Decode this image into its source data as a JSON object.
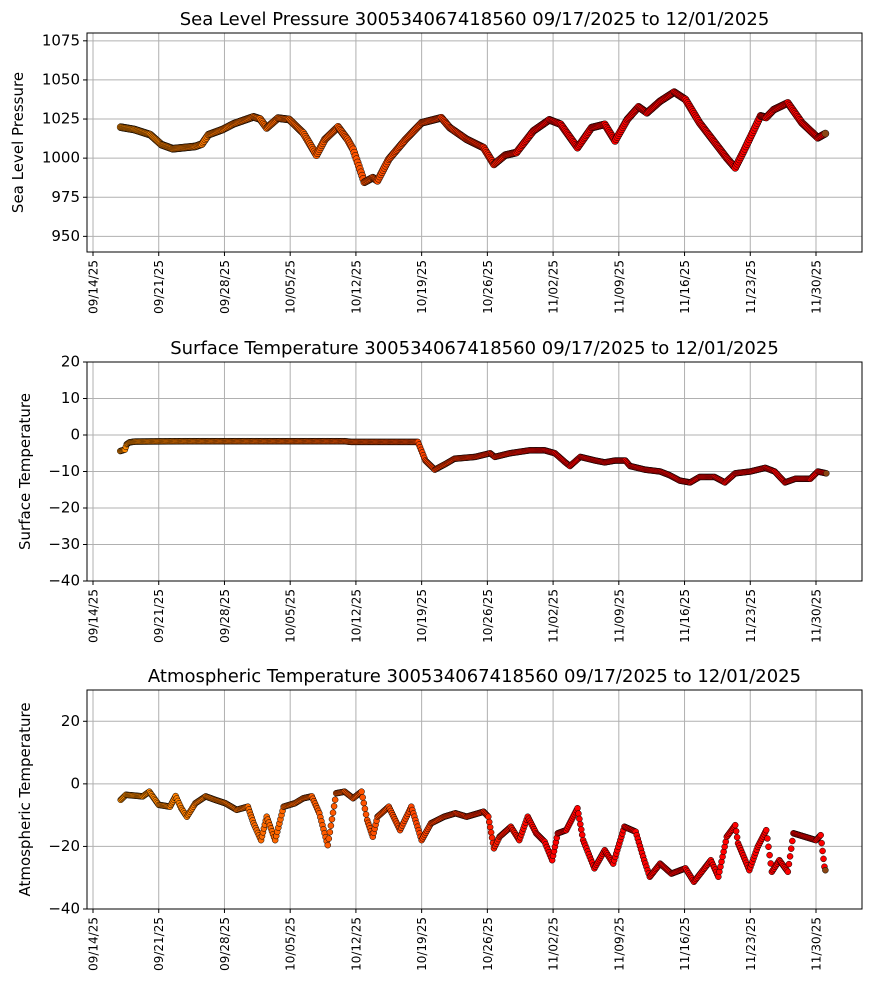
{
  "x_tick_labels": [
    "09/14/25",
    "09/21/25",
    "09/28/25",
    "10/05/25",
    "10/12/25",
    "10/19/25",
    "10/26/25",
    "11/02/25",
    "11/09/25",
    "11/16/25",
    "11/23/25",
    "11/30/25"
  ],
  "colors": {
    "start": "#ff8c00",
    "mid": "#ff4500",
    "end": "#ff0000",
    "last": "#8b4513",
    "edge": "#000000",
    "grid": "#b0b0b0"
  },
  "chart_data": [
    {
      "type": "scatter",
      "title": "Sea Level Pressure 300534067418560  09/17/2025 to 12/01/2025",
      "ylabel": "Sea Level Pressure",
      "xlabel": "",
      "x_units": "days since 09/14/25",
      "xlim": [
        -0.64,
        81.9
      ],
      "ylim": [
        940,
        1080
      ],
      "yticks": [
        950,
        975,
        1000,
        1025,
        1050,
        1075
      ],
      "grid": true,
      "points": [
        [
          2.95,
          1019.8
        ],
        [
          4.4,
          1018.3
        ],
        [
          6.1,
          1015
        ],
        [
          7.3,
          1008.6
        ],
        [
          8.5,
          1006
        ],
        [
          10.9,
          1007.5
        ],
        [
          11.6,
          1009
        ],
        [
          12.3,
          1015
        ],
        [
          13.8,
          1018.3
        ],
        [
          15,
          1022
        ],
        [
          17.1,
          1026.4
        ],
        [
          17.8,
          1025
        ],
        [
          18.5,
          1019.3
        ],
        [
          19.7,
          1025.6
        ],
        [
          20.9,
          1024.7
        ],
        [
          22.4,
          1016
        ],
        [
          23.8,
          1001.9
        ],
        [
          24.7,
          1012
        ],
        [
          26.1,
          1020
        ],
        [
          27.1,
          1012
        ],
        [
          27.7,
          1005.6
        ],
        [
          28.9,
          984.6
        ],
        [
          29.8,
          987.5
        ],
        [
          30.3,
          985.5
        ],
        [
          31.5,
          999.3
        ],
        [
          33.3,
          1012
        ],
        [
          35,
          1022.6
        ],
        [
          37.1,
          1025.8
        ],
        [
          38,
          1019.5
        ],
        [
          39.8,
          1012
        ],
        [
          41.6,
          1006.7
        ],
        [
          42.7,
          996
        ],
        [
          43.9,
          1001.9
        ],
        [
          45.1,
          1003.6
        ],
        [
          46.9,
          1017.4
        ],
        [
          48.6,
          1024.5
        ],
        [
          49.8,
          1021.7
        ],
        [
          51.6,
          1006.7
        ],
        [
          53.1,
          1019.5
        ],
        [
          54.5,
          1021.6
        ],
        [
          55.6,
          1011
        ],
        [
          56.9,
          1024.7
        ],
        [
          58.1,
          1032.8
        ],
        [
          59,
          1029
        ],
        [
          60.4,
          1036.4
        ],
        [
          61.9,
          1042.2
        ],
        [
          63.1,
          1037.5
        ],
        [
          64.6,
          1022.6
        ],
        [
          66.4,
          1008.6
        ],
        [
          67.5,
          1000
        ],
        [
          68.4,
          993.8
        ],
        [
          69.3,
          1004.5
        ],
        [
          71.1,
          1027
        ],
        [
          71.7,
          1026
        ],
        [
          72.5,
          1031
        ],
        [
          74,
          1035.3
        ],
        [
          75.5,
          1022.6
        ],
        [
          77.2,
          1013
        ],
        [
          78,
          1015.7
        ]
      ]
    },
    {
      "type": "scatter",
      "title": "Surface Temperature 300534067418560  09/17/2025 to 12/01/2025",
      "ylabel": "Surface Temperature",
      "xlabel": "",
      "x_units": "days since 09/14/25",
      "xlim": [
        -0.64,
        81.9
      ],
      "ylim": [
        -40,
        20
      ],
      "yticks": [
        -40,
        -30,
        -20,
        -10,
        0,
        10,
        20
      ],
      "grid": true,
      "points": [
        [
          2.9,
          -4.4
        ],
        [
          3.4,
          -4
        ],
        [
          3.6,
          -2.5
        ],
        [
          3.9,
          -2
        ],
        [
          4.5,
          -1.8
        ],
        [
          10,
          -1.7
        ],
        [
          26.8,
          -1.7
        ],
        [
          27.5,
          -1.9
        ],
        [
          34.6,
          -1.9
        ],
        [
          35.4,
          -7
        ],
        [
          36.4,
          -9.5
        ],
        [
          37.5,
          -8
        ],
        [
          38.5,
          -6.5
        ],
        [
          40.7,
          -6
        ],
        [
          42.3,
          -5
        ],
        [
          42.8,
          -6
        ],
        [
          44.4,
          -5
        ],
        [
          46.5,
          -4.2
        ],
        [
          48.1,
          -4.2
        ],
        [
          49.2,
          -5
        ],
        [
          50.3,
          -7.5
        ],
        [
          50.8,
          -8.5
        ],
        [
          51.9,
          -6
        ],
        [
          53.5,
          -7
        ],
        [
          54.5,
          -7.5
        ],
        [
          55.6,
          -7
        ],
        [
          56.7,
          -7
        ],
        [
          57.2,
          -8.5
        ],
        [
          58.8,
          -9.5
        ],
        [
          60.4,
          -10
        ],
        [
          61.4,
          -11
        ],
        [
          62.5,
          -12.5
        ],
        [
          63.6,
          -13
        ],
        [
          64.6,
          -11.5
        ],
        [
          66.2,
          -11.5
        ],
        [
          67.3,
          -13
        ],
        [
          68.4,
          -10.5
        ],
        [
          70,
          -10
        ],
        [
          71.6,
          -9
        ],
        [
          72.6,
          -10
        ],
        [
          73.7,
          -13
        ],
        [
          74.8,
          -12
        ],
        [
          76.4,
          -12
        ],
        [
          77.2,
          -10
        ],
        [
          78.1,
          -10.5
        ]
      ]
    },
    {
      "type": "scatter",
      "title": "Atmospheric Temperature 300534067418560  09/17/2025 to 12/01/2025",
      "ylabel": "Atmospheric Temperature",
      "xlabel": "",
      "x_units": "days since 09/14/25",
      "xlim": [
        -0.64,
        81.9
      ],
      "ylim": [
        -40,
        30
      ],
      "yticks": [
        -40,
        -20,
        0,
        20
      ],
      "grid": true,
      "points": [
        [
          2.95,
          -5.1
        ],
        [
          3.5,
          -3.5
        ],
        [
          5.3,
          -4
        ],
        [
          6,
          -2.5
        ],
        [
          7,
          -6.7
        ],
        [
          8.2,
          -7.3
        ],
        [
          8.8,
          -3.9
        ],
        [
          9.4,
          -7.8
        ],
        [
          10,
          -10.5
        ],
        [
          10.9,
          -6.2
        ],
        [
          12,
          -4
        ],
        [
          13,
          -5.1
        ],
        [
          14.1,
          -6.2
        ],
        [
          15.3,
          -8.3
        ],
        [
          16.5,
          -7.3
        ],
        [
          17.1,
          -12.6
        ],
        [
          17.9,
          -18
        ],
        [
          18.5,
          -10.5
        ],
        [
          19.4,
          -18
        ],
        [
          20.3,
          -7.3
        ],
        [
          21.5,
          -6.2
        ],
        [
          22.4,
          -4.6
        ],
        [
          23.3,
          -4
        ],
        [
          24.1,
          -9.4
        ],
        [
          25,
          -19.6
        ],
        [
          25.9,
          -3
        ],
        [
          26.8,
          -2.5
        ],
        [
          27.7,
          -4.6
        ],
        [
          28.6,
          -2.5
        ],
        [
          29.2,
          -11.6
        ],
        [
          29.8,
          -16.9
        ],
        [
          30.3,
          -10.5
        ],
        [
          31.5,
          -7.3
        ],
        [
          32.7,
          -14.8
        ],
        [
          33.9,
          -7.3
        ],
        [
          35,
          -18
        ],
        [
          36,
          -12.6
        ],
        [
          37.4,
          -10.5
        ],
        [
          38.6,
          -9.4
        ],
        [
          39.8,
          -10.5
        ],
        [
          41.6,
          -8.9
        ],
        [
          42.1,
          -10.5
        ],
        [
          42.7,
          -20.6
        ],
        [
          43.3,
          -16.9
        ],
        [
          44.5,
          -13.7
        ],
        [
          45.4,
          -18
        ],
        [
          46.3,
          -10.5
        ],
        [
          47.2,
          -15.8
        ],
        [
          48.1,
          -18.5
        ],
        [
          48.9,
          -24.4
        ],
        [
          49.5,
          -15.8
        ],
        [
          50.4,
          -14.8
        ],
        [
          51.6,
          -7.8
        ],
        [
          52.2,
          -18
        ],
        [
          53.4,
          -27
        ],
        [
          54.5,
          -21.2
        ],
        [
          55.4,
          -25.5
        ],
        [
          56.6,
          -13.7
        ],
        [
          57.8,
          -15.3
        ],
        [
          58.7,
          -24.4
        ],
        [
          59.3,
          -29.7
        ],
        [
          60.4,
          -25.5
        ],
        [
          61.6,
          -28.7
        ],
        [
          63.1,
          -27
        ],
        [
          64,
          -31.3
        ],
        [
          65.8,
          -24.4
        ],
        [
          66.6,
          -29.7
        ],
        [
          67.5,
          -16.9
        ],
        [
          68.4,
          -13.2
        ],
        [
          68.7,
          -19
        ],
        [
          69.9,
          -27.6
        ],
        [
          70.8,
          -20.1
        ],
        [
          71.7,
          -14.8
        ],
        [
          72.3,
          -28.1
        ],
        [
          73.1,
          -24.4
        ],
        [
          74,
          -28.1
        ],
        [
          74.6,
          -15.8
        ],
        [
          75.8,
          -16.9
        ],
        [
          77,
          -18
        ],
        [
          77.5,
          -16.4
        ],
        [
          77.9,
          -26.5
        ],
        [
          78,
          -27.6
        ]
      ]
    }
  ]
}
